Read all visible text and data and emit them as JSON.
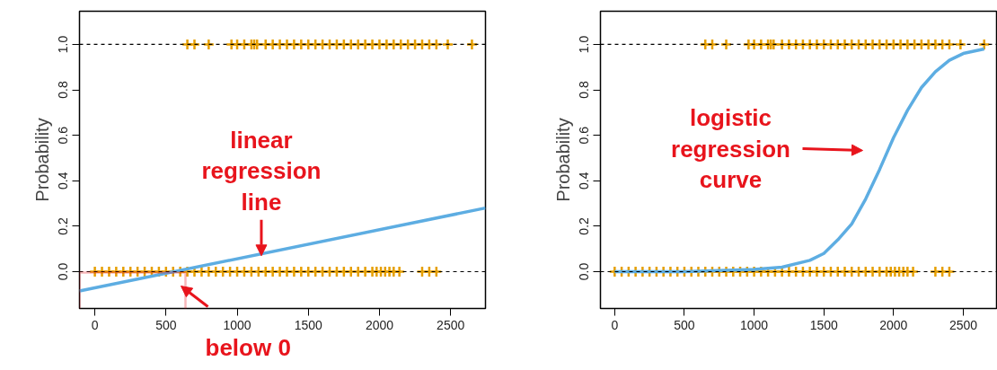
{
  "chart_data": [
    {
      "type": "line",
      "ylabel": "Probability",
      "xlim": [
        -108,
        2745
      ],
      "ylim": [
        -0.162,
        1.146
      ],
      "xticks": [
        0,
        500,
        1000,
        1500,
        2000,
        2500
      ],
      "yticks": [
        {
          "value": 0,
          "label": "0.0"
        },
        {
          "value": 0.2,
          "label": "0.2"
        },
        {
          "value": 0.4,
          "label": "0.4"
        },
        {
          "value": 0.6,
          "label": "0.6"
        },
        {
          "value": 0.8,
          "label": "0.8"
        },
        {
          "value": 1,
          "label": "1.0"
        }
      ],
      "grid": false,
      "ref_lines": [
        {
          "axis": "y",
          "value": 0,
          "color": "#000000",
          "line_style": "dashed"
        },
        {
          "axis": "y",
          "value": 1,
          "color": "#000000",
          "line_style": "dashed"
        }
      ],
      "series": [
        {
          "type": "scatter",
          "marker": "cross",
          "color": "#e69f00",
          "x": [
            0,
            50,
            100,
            150,
            200,
            250,
            300,
            350,
            400,
            450,
            500,
            550,
            600,
            650,
            700,
            750,
            800,
            850,
            900,
            950,
            1000,
            1050,
            1100,
            1150,
            1200,
            1250,
            1300,
            1350,
            1400,
            1450,
            1500,
            1550,
            1600,
            1650,
            1700,
            1750,
            1800,
            1850,
            1900,
            1950,
            1980,
            2010,
            2040,
            2070,
            2100,
            2140,
            2300,
            2350,
            2400
          ],
          "values": [
            0,
            0,
            0,
            0,
            0,
            0,
            0,
            0,
            0,
            0,
            0,
            0,
            0,
            0,
            0,
            0,
            0,
            0,
            0,
            0,
            0,
            0,
            0,
            0,
            0,
            0,
            0,
            0,
            0,
            0,
            0,
            0,
            0,
            0,
            0,
            0,
            0,
            0,
            0,
            0,
            0,
            0,
            0,
            0,
            0,
            0,
            0,
            0,
            0
          ]
        },
        {
          "type": "scatter",
          "marker": "cross",
          "color": "#e69f00",
          "x": [
            650,
            700,
            800,
            960,
            1000,
            1050,
            1100,
            1120,
            1140,
            1200,
            1250,
            1300,
            1350,
            1400,
            1450,
            1500,
            1550,
            1600,
            1650,
            1700,
            1750,
            1800,
            1850,
            1900,
            1950,
            2000,
            2050,
            2100,
            2150,
            2200,
            2250,
            2300,
            2350,
            2400,
            2480,
            2650
          ],
          "values": [
            1,
            1,
            1,
            1,
            1,
            1,
            1,
            1,
            1,
            1,
            1,
            1,
            1,
            1,
            1,
            1,
            1,
            1,
            1,
            1,
            1,
            1,
            1,
            1,
            1,
            1,
            1,
            1,
            1,
            1,
            1,
            1,
            1,
            1,
            1,
            1
          ]
        },
        {
          "color": "#5dade2",
          "x": [
            -108,
            2745
          ],
          "values": [
            -0.085,
            0.28
          ]
        }
      ],
      "annotations": [
        {
          "text": "linear\nregression\nline",
          "x": 1170,
          "y": 0.07
        },
        "below 0"
      ]
    },
    {
      "type": "line",
      "ylabel": "Probability",
      "xlim": [
        -102,
        2745
      ],
      "ylim": [
        -0.162,
        1.146
      ],
      "xticks": [
        0,
        500,
        1000,
        1500,
        2000,
        2500
      ],
      "yticks": [
        {
          "value": 0,
          "label": "0.0"
        },
        {
          "value": 0.2,
          "label": "0.2"
        },
        {
          "value": 0.4,
          "label": "0.4"
        },
        {
          "value": 0.6,
          "label": "0.6"
        },
        {
          "value": 0.8,
          "label": "0.8"
        },
        {
          "value": 1,
          "label": "1.0"
        }
      ],
      "grid": false,
      "ref_lines": [
        {
          "axis": "y",
          "value": 0,
          "color": "#000000",
          "line_style": "dashed"
        },
        {
          "axis": "y",
          "value": 1,
          "color": "#000000",
          "line_style": "dashed"
        }
      ],
      "series": [
        {
          "type": "scatter",
          "marker": "cross",
          "color": "#e69f00",
          "x": [
            0,
            50,
            100,
            150,
            200,
            250,
            300,
            350,
            400,
            450,
            500,
            550,
            600,
            650,
            700,
            750,
            800,
            850,
            900,
            950,
            1000,
            1050,
            1100,
            1150,
            1200,
            1250,
            1300,
            1350,
            1400,
            1450,
            1500,
            1550,
            1600,
            1650,
            1700,
            1750,
            1800,
            1850,
            1900,
            1950,
            1980,
            2010,
            2040,
            2070,
            2100,
            2140,
            2300,
            2350,
            2400
          ],
          "values": [
            0,
            0,
            0,
            0,
            0,
            0,
            0,
            0,
            0,
            0,
            0,
            0,
            0,
            0,
            0,
            0,
            0,
            0,
            0,
            0,
            0,
            0,
            0,
            0,
            0,
            0,
            0,
            0,
            0,
            0,
            0,
            0,
            0,
            0,
            0,
            0,
            0,
            0,
            0,
            0,
            0,
            0,
            0,
            0,
            0,
            0,
            0,
            0,
            0
          ]
        },
        {
          "type": "scatter",
          "marker": "cross",
          "color": "#e69f00",
          "x": [
            650,
            700,
            800,
            960,
            1000,
            1050,
            1100,
            1120,
            1140,
            1200,
            1250,
            1300,
            1350,
            1400,
            1450,
            1500,
            1550,
            1600,
            1650,
            1700,
            1750,
            1800,
            1850,
            1900,
            1950,
            2000,
            2050,
            2100,
            2150,
            2200,
            2250,
            2300,
            2350,
            2400,
            2480,
            2650
          ],
          "values": [
            1,
            1,
            1,
            1,
            1,
            1,
            1,
            1,
            1,
            1,
            1,
            1,
            1,
            1,
            1,
            1,
            1,
            1,
            1,
            1,
            1,
            1,
            1,
            1,
            1,
            1,
            1,
            1,
            1,
            1,
            1,
            1,
            1,
            1,
            1,
            1
          ]
        },
        {
          "color": "#5dade2",
          "x": [
            0,
            500,
            1000,
            1200,
            1400,
            1500,
            1600,
            1700,
            1800,
            1900,
            2000,
            2100,
            2200,
            2300,
            2400,
            2500,
            2650
          ],
          "values": [
            0.0,
            0.0,
            0.01,
            0.02,
            0.05,
            0.08,
            0.14,
            0.21,
            0.32,
            0.45,
            0.59,
            0.71,
            0.81,
            0.88,
            0.93,
            0.96,
            0.98
          ]
        }
      ],
      "annotations": [
        "logistic\nregression\ncurve"
      ]
    }
  ]
}
